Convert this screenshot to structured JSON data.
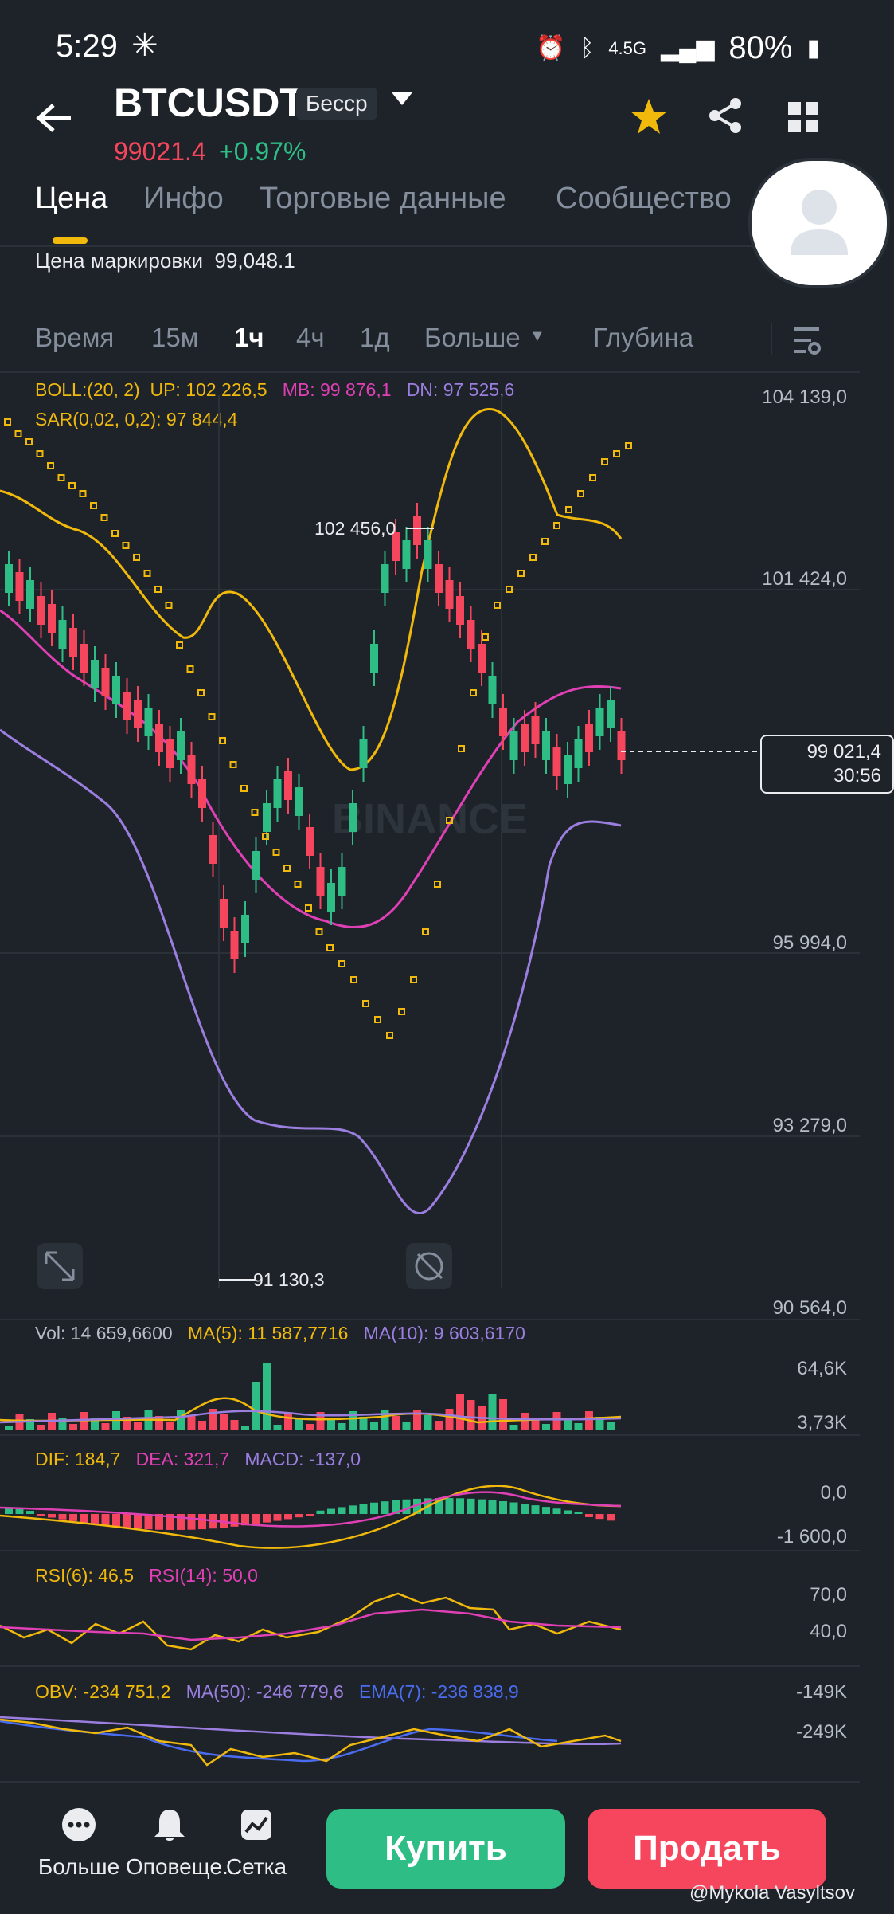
{
  "status_bar": {
    "time": "5:29",
    "battery": "80%",
    "network": "4.5G"
  },
  "header": {
    "pair": "BTCUSDT",
    "tag": "Бесср",
    "last_price": "99021.4",
    "change": "+0.97%"
  },
  "tabs": [
    "Цена",
    "Инфо",
    "Торговые данные",
    "Сообщество"
  ],
  "mark_price": {
    "label": "Цена маркировки",
    "value": "99,048.1"
  },
  "timeframes": [
    "Время",
    "15м",
    "1ч",
    "4ч",
    "1д",
    "Больше",
    "Глубина"
  ],
  "indicators": {
    "boll": {
      "label": "BOLL:(20, 2)",
      "up": "UP: 102 226,5",
      "mb": "MB: 99 876,1",
      "dn": "DN: 97 525,6"
    },
    "sar": "SAR(0,02, 0,2): 97 844,4",
    "vol": {
      "vol": "Vol: 14 659,6600",
      "ma5": "MA(5): 11 587,7716",
      "ma10": "MA(10): 9 603,6170"
    },
    "macd": {
      "dif": "DIF: 184,7",
      "dea": "DEA: 321,7",
      "macd": "MACD: -137,0"
    },
    "rsi": {
      "rsi6": "RSI(6): 46,5",
      "rsi14": "RSI(14): 50,0"
    },
    "obv": {
      "obv": "OBV: -234 751,2",
      "ma50": "MA(50): -246 779,6",
      "ema7": "EMA(7): -236 838,9"
    }
  },
  "price_axis": [
    "104 139,0",
    "101 424,0",
    "95 994,0",
    "93 279,0",
    "90 564,0"
  ],
  "current_price_label": {
    "price": "99 021,4",
    "countdown": "30:56"
  },
  "chart_annotations": {
    "high": "102 456,0",
    "low": "91 130,3"
  },
  "watermark": "BINANCE",
  "vol_axis": [
    "64,6K",
    "3,73K"
  ],
  "macd_axis": [
    "0,0",
    "-1 600,0"
  ],
  "rsi_axis": [
    "70,0",
    "40,0"
  ],
  "obv_axis": [
    "-149K",
    "-249K"
  ],
  "bottom_nav": {
    "more": "Больше",
    "alerts": "Оповеще...",
    "grid": "Сетка",
    "buy": "Купить",
    "sell": "Продать"
  },
  "credit": "@Mykola Vasyltsov",
  "colors": {
    "up": "#2ebd85",
    "down": "#f6465d",
    "accent": "#f0b90b",
    "bg": "#1e2329"
  }
}
